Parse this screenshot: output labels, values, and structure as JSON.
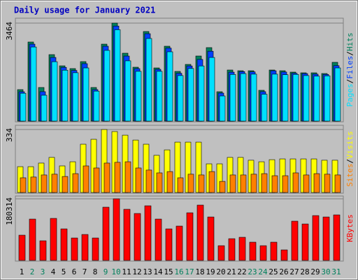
{
  "title": "Daily usage for January 2021",
  "categories": [
    "1",
    "2",
    "3",
    "4",
    "5",
    "6",
    "7",
    "8",
    "9",
    "10",
    "11",
    "12",
    "13",
    "14",
    "15",
    "16",
    "17",
    "18",
    "19",
    "20",
    "21",
    "22",
    "23",
    "24",
    "25",
    "26",
    "27",
    "28",
    "29",
    "30",
    "31"
  ],
  "category_colors": [
    "#000000",
    "#00805c",
    "#00805c",
    "#000000",
    "#000000",
    "#000000",
    "#000000",
    "#000000",
    "#00805c",
    "#00805c",
    "#000000",
    "#000000",
    "#000000",
    "#000000",
    "#000000",
    "#00805c",
    "#00805c",
    "#000000",
    "#000000",
    "#000000",
    "#000000",
    "#000000",
    "#00805c",
    "#00805c",
    "#000000",
    "#000000",
    "#000000",
    "#000000",
    "#000000",
    "#00805c",
    "#00805c"
  ],
  "chart_data": [
    {
      "type": "bar",
      "ylim": [
        0,
        3464
      ],
      "yticks": [
        3464
      ],
      "legend_separator": "/",
      "series": [
        {
          "name": "Hits",
          "color": "#00805c",
          "values": [
            1113,
            2796,
            1188,
            2350,
            1954,
            1856,
            2103,
            1188,
            2721,
            3464,
            2400,
            1905,
            3167,
            1880,
            2647,
            1757,
            2004,
            2301,
            2598,
            1039,
            1806,
            1781,
            1781,
            1089,
            1806,
            1781,
            1732,
            1707,
            1707,
            1682,
            2078
          ]
        },
        {
          "name": "Files",
          "color": "#0040ff",
          "values": [
            1038,
            2721,
            1040,
            2250,
            1900,
            1790,
            2030,
            1113,
            2647,
            3360,
            2300,
            1855,
            3090,
            1830,
            2580,
            1690,
            1950,
            2180,
            2470,
            990,
            1730,
            1750,
            1740,
            1040,
            1780,
            1735,
            1690,
            1680,
            1660,
            1650,
            1960
          ]
        },
        {
          "name": "Pages",
          "color": "#00e0ff",
          "values": [
            985,
            2620,
            915,
            2100,
            1800,
            1710,
            1880,
            1060,
            2500,
            3230,
            2130,
            1760,
            2920,
            1760,
            2450,
            1610,
            1860,
            1950,
            2250,
            890,
            1650,
            1680,
            1660,
            950,
            1660,
            1640,
            1650,
            1610,
            1590,
            1600,
            1880
          ]
        }
      ]
    },
    {
      "type": "bar",
      "ylim": [
        0,
        334
      ],
      "yticks": [
        334
      ],
      "legend_separator": "/",
      "series": [
        {
          "name": "Visits",
          "color": "#ffff00",
          "values": [
            137,
            137,
            156,
            186,
            141,
            163,
            256,
            282,
            334,
            323,
            304,
            278,
            256,
            197,
            226,
            267,
            267,
            267,
            152,
            152,
            186,
            186,
            171,
            163,
            174,
            178,
            178,
            178,
            178,
            171,
            171
          ]
        },
        {
          "name": "Sites",
          "color": "#ff8000",
          "values": [
            78,
            82,
            93,
            97,
            85,
            100,
            141,
            130,
            156,
            160,
            163,
            130,
            119,
            104,
            111,
            78,
            97,
            93,
            111,
            59,
            93,
            93,
            97,
            100,
            89,
            89,
            104,
            93,
            100,
            97,
            93
          ]
        }
      ]
    },
    {
      "type": "bar",
      "ylim": [
        0,
        180314
      ],
      "yticks": [
        180314
      ],
      "legend_separator": "/",
      "series": [
        {
          "name": "KBytes",
          "color": "#ff0000",
          "values": [
            73770,
            120890,
            57370,
            122940,
            92200,
            65570,
            75810,
            65570,
            155720,
            180314,
            149580,
            137280,
            159820,
            120890,
            92200,
            100400,
            139330,
            161870,
            127040,
            43030,
            63520,
            67620,
            53270,
            43030,
            53270,
            30730,
            114740,
            106550,
            131130,
            127040,
            133180
          ]
        }
      ]
    }
  ]
}
